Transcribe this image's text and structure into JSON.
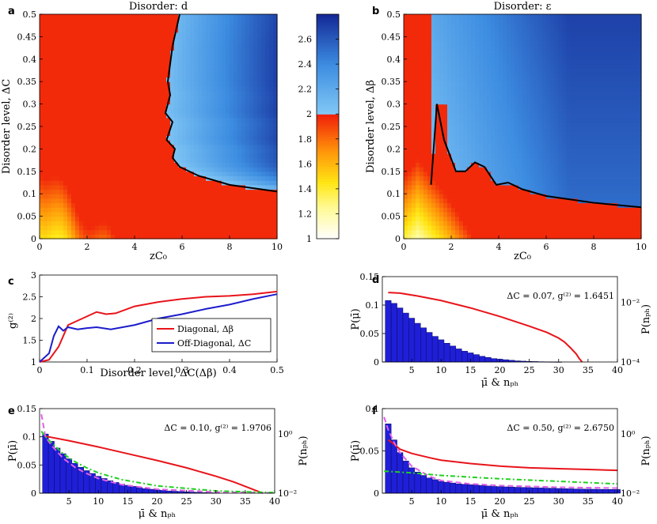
{
  "chart_data": [
    {
      "id": "a",
      "type": "heatmap",
      "letter": "a",
      "title": "Disorder: d",
      "xlabel": "zC₀",
      "ylabel": "Disorder level, ΔC",
      "xlim": [
        0,
        10
      ],
      "ylim": [
        0,
        0.5
      ],
      "xticks": [
        "0",
        "2",
        "4",
        "6",
        "8",
        "10"
      ],
      "yticks": [
        "0",
        "0.05",
        "0.1",
        "0.15",
        "0.2",
        "0.25",
        "0.3",
        "0.35",
        "0.4",
        "0.45",
        "0.5"
      ],
      "boundary_x": [
        5.9,
        5.6,
        5.4,
        5.5,
        5.3,
        5.6,
        5.35,
        5.7,
        5.6,
        5.9,
        6.7,
        8.0,
        10.0
      ],
      "boundary_y": [
        0.5,
        0.43,
        0.35,
        0.32,
        0.28,
        0.26,
        0.22,
        0.2,
        0.18,
        0.16,
        0.14,
        0.12,
        0.105
      ]
    },
    {
      "id": "b",
      "type": "heatmap",
      "letter": "b",
      "title": "Disorder: ε",
      "xlabel": "zC₀",
      "ylabel": "Disorder level, Δβ",
      "xlim": [
        0,
        10
      ],
      "ylim": [
        0,
        0.5
      ],
      "xticks": [
        "0",
        "2",
        "4",
        "6",
        "8",
        "10"
      ],
      "yticks": [
        "0",
        "0.05",
        "0.1",
        "0.15",
        "0.2",
        "0.25",
        "0.3",
        "0.35",
        "0.4",
        "0.45",
        "0.5"
      ],
      "boundary_x": [
        1.15,
        1.4,
        1.7,
        2.2,
        2.6,
        3.0,
        3.4,
        3.9,
        4.4,
        5.0,
        6.0,
        8.0,
        10.0
      ],
      "boundary_y": [
        0.12,
        0.3,
        0.22,
        0.15,
        0.15,
        0.17,
        0.16,
        0.12,
        0.125,
        0.11,
        0.095,
        0.08,
        0.07
      ]
    },
    {
      "id": "cb",
      "type": "colorbar",
      "range": [
        1,
        2.8
      ],
      "threshold": 2,
      "ticks": [
        "1",
        "1.2",
        "1.4",
        "1.6",
        "1.8",
        "2",
        "2.2",
        "2.4",
        "2.6"
      ]
    },
    {
      "id": "c",
      "type": "line",
      "letter": "c",
      "xlabel": "Disorder level, ΔC(Δβ)",
      "ylabel": "g⁽²⁾",
      "xlim": [
        0,
        0.5
      ],
      "ylim": [
        1,
        3
      ],
      "xticks": [
        "0",
        "0.1",
        "0.2",
        "0.3",
        "0.4",
        "0.5"
      ],
      "yticks": [
        "1",
        "1.5",
        "2",
        "2.5",
        "3"
      ],
      "legend": [
        "Diagonal, Δβ",
        "Off-Diagonal, ΔC"
      ],
      "series": [
        {
          "name": "Diagonal, Δβ",
          "color": "#e8141a",
          "x": [
            0,
            0.02,
            0.04,
            0.06,
            0.08,
            0.1,
            0.12,
            0.14,
            0.16,
            0.2,
            0.25,
            0.3,
            0.35,
            0.4,
            0.45,
            0.5
          ],
          "y": [
            1,
            1.05,
            1.35,
            1.85,
            1.95,
            2.05,
            2.15,
            2.1,
            2.12,
            2.28,
            2.38,
            2.45,
            2.5,
            2.52,
            2.56,
            2.62
          ]
        },
        {
          "name": "Off-Diagonal, ΔC",
          "color": "#1c1ccc",
          "x": [
            0,
            0.02,
            0.03,
            0.04,
            0.05,
            0.06,
            0.08,
            0.1,
            0.12,
            0.15,
            0.2,
            0.25,
            0.3,
            0.35,
            0.4,
            0.45,
            0.5
          ],
          "y": [
            1,
            1.2,
            1.6,
            1.82,
            1.72,
            1.8,
            1.75,
            1.78,
            1.8,
            1.75,
            1.85,
            2.0,
            2.1,
            2.22,
            2.32,
            2.45,
            2.56
          ]
        }
      ]
    },
    {
      "id": "d",
      "type": "bar",
      "letter": "d",
      "annotation": "ΔC = 0.07, g⁽²⁾ = 1.6451",
      "xlabel": "μ̄ & nₚₕ",
      "ylabel": "P(μ̄)",
      "y2label": "P(nₚₕ)",
      "xlim": [
        0,
        40
      ],
      "ylim": [
        0,
        0.15
      ],
      "xticks": [
        "5",
        "10",
        "15",
        "20",
        "25",
        "30",
        "35",
        "40"
      ],
      "yticks": [
        "0",
        "0.05",
        "0.1",
        "0.15"
      ],
      "y2ticks": [
        "10⁻⁴",
        "10⁻²"
      ],
      "bars_x": [
        1,
        2,
        3,
        4,
        5,
        6,
        7,
        8,
        9,
        10,
        11,
        12,
        13,
        14,
        15,
        16,
        17,
        18,
        19,
        20,
        21,
        22,
        23,
        24,
        25,
        26,
        27,
        28,
        29,
        30
      ],
      "bars_y": [
        0.108,
        0.103,
        0.095,
        0.086,
        0.077,
        0.068,
        0.06,
        0.052,
        0.045,
        0.039,
        0.033,
        0.028,
        0.023,
        0.019,
        0.016,
        0.013,
        0.01,
        0.008,
        0.006,
        0.005,
        0.004,
        0.003,
        0.002,
        0.0015,
        0.001,
        0.0008,
        0.0005,
        0.0003,
        0.0002,
        0.0001
      ],
      "curve": {
        "color": "#e8141a",
        "x": [
          1,
          3,
          6,
          10,
          15,
          20,
          25,
          28,
          30,
          31,
          32,
          33,
          33.5,
          34
        ],
        "y": [
          0.122,
          0.121,
          0.116,
          0.108,
          0.095,
          0.08,
          0.063,
          0.052,
          0.042,
          0.035,
          0.025,
          0.014,
          0.006,
          0
        ]
      }
    },
    {
      "id": "e",
      "type": "bar",
      "letter": "e",
      "annotation": "ΔC = 0.10, g⁽²⁾ = 1.9706",
      "xlabel": "μ̄ & nₚₕ",
      "ylabel": "P(μ̄)",
      "y2label": "P(nₚₕ)",
      "xlim": [
        0,
        40
      ],
      "ylim": [
        0,
        0.15
      ],
      "xticks": [
        "5",
        "10",
        "15",
        "20",
        "25",
        "30",
        "35",
        "40"
      ],
      "yticks": [
        "0",
        "0.05",
        "0.1",
        "0.15"
      ],
      "y2ticks": [
        "10⁻²",
        "10⁰"
      ],
      "bars_x": [
        1,
        2,
        3,
        4,
        5,
        6,
        7,
        8,
        9,
        10,
        11,
        12,
        13,
        14,
        15,
        16,
        17,
        18,
        19,
        20,
        21,
        22,
        23,
        24,
        25,
        26,
        27,
        28,
        29,
        30
      ],
      "bars_y": [
        0.105,
        0.092,
        0.08,
        0.07,
        0.061,
        0.053,
        0.046,
        0.04,
        0.035,
        0.03,
        0.026,
        0.022,
        0.019,
        0.016,
        0.014,
        0.012,
        0.01,
        0.008,
        0.007,
        0.006,
        0.005,
        0.004,
        0.0035,
        0.003,
        0.0025,
        0.002,
        0.0015,
        0.001,
        0.0008,
        0.0006
      ],
      "curve": {
        "color": "#e8141a",
        "x": [
          1,
          5,
          10,
          15,
          20,
          25,
          30,
          33,
          35,
          37,
          38
        ],
        "y": [
          0.101,
          0.093,
          0.082,
          0.07,
          0.058,
          0.045,
          0.03,
          0.02,
          0.012,
          0.004,
          0
        ]
      },
      "fit1": {
        "color": "#e060e8",
        "x": [
          0.3,
          1,
          2,
          4,
          6,
          8,
          10,
          14,
          20,
          30,
          40
        ],
        "y": [
          0.14,
          0.1,
          0.085,
          0.062,
          0.046,
          0.035,
          0.026,
          0.015,
          0.007,
          0.002,
          0.0005
        ]
      },
      "fit2": {
        "color": "#20d020",
        "x": [
          0.3,
          1,
          2,
          4,
          6,
          8,
          10,
          14,
          20,
          30,
          40
        ],
        "y": [
          0.11,
          0.1,
          0.09,
          0.07,
          0.056,
          0.045,
          0.036,
          0.024,
          0.013,
          0.004,
          0.001
        ]
      }
    },
    {
      "id": "f",
      "type": "bar",
      "letter": "f",
      "annotation": "ΔC = 0.50, g⁽²⁾ = 2.6750",
      "xlabel": "μ̄ & nₚₕ",
      "ylabel": "P(μ̄)",
      "y2label": "P(nₚₕ)",
      "xlim": [
        0,
        40
      ],
      "ylim": [
        0,
        0.1
      ],
      "xticks": [
        "5",
        "10",
        "15",
        "20",
        "25",
        "30",
        "35",
        "40"
      ],
      "yticks": [
        "0",
        "0.05",
        "0.1"
      ],
      "y2ticks": [
        "10⁻²",
        "10⁰"
      ],
      "bars_x": [
        1,
        2,
        3,
        4,
        5,
        6,
        7,
        8,
        9,
        10,
        11,
        12,
        13,
        14,
        15,
        16,
        17,
        18,
        19,
        20,
        21,
        22,
        23,
        24,
        25,
        26,
        27,
        28,
        29,
        30,
        31,
        32,
        33,
        34,
        35,
        36,
        37,
        38,
        39,
        40
      ],
      "bars_y": [
        0.082,
        0.063,
        0.048,
        0.038,
        0.03,
        0.025,
        0.021,
        0.018,
        0.016,
        0.014,
        0.013,
        0.012,
        0.011,
        0.0105,
        0.01,
        0.0095,
        0.009,
        0.0085,
        0.008,
        0.0078,
        0.0075,
        0.0072,
        0.007,
        0.0068,
        0.0066,
        0.0064,
        0.0062,
        0.006,
        0.0058,
        0.0056,
        0.0054,
        0.0052,
        0.005,
        0.0049,
        0.0048,
        0.0047,
        0.0046,
        0.0045,
        0.0044,
        0.0043
      ],
      "curve": {
        "color": "#e8141a",
        "x": [
          1,
          2,
          3,
          5,
          8,
          10,
          15,
          20,
          25,
          30,
          35,
          40
        ],
        "y": [
          0.063,
          0.058,
          0.052,
          0.047,
          0.042,
          0.039,
          0.035,
          0.032,
          0.03,
          0.029,
          0.028,
          0.027
        ]
      },
      "fit1": {
        "color": "#e060e8",
        "x": [
          0.3,
          1,
          2,
          3,
          5,
          8,
          10,
          15,
          20,
          30,
          40
        ],
        "y": [
          0.09,
          0.075,
          0.06,
          0.048,
          0.032,
          0.02,
          0.015,
          0.011,
          0.009,
          0.007,
          0.006
        ]
      },
      "fit2": {
        "color": "#20d020",
        "x": [
          0.3,
          5,
          10,
          20,
          30,
          40
        ],
        "y": [
          0.026,
          0.024,
          0.021,
          0.017,
          0.014,
          0.011
        ]
      }
    }
  ]
}
